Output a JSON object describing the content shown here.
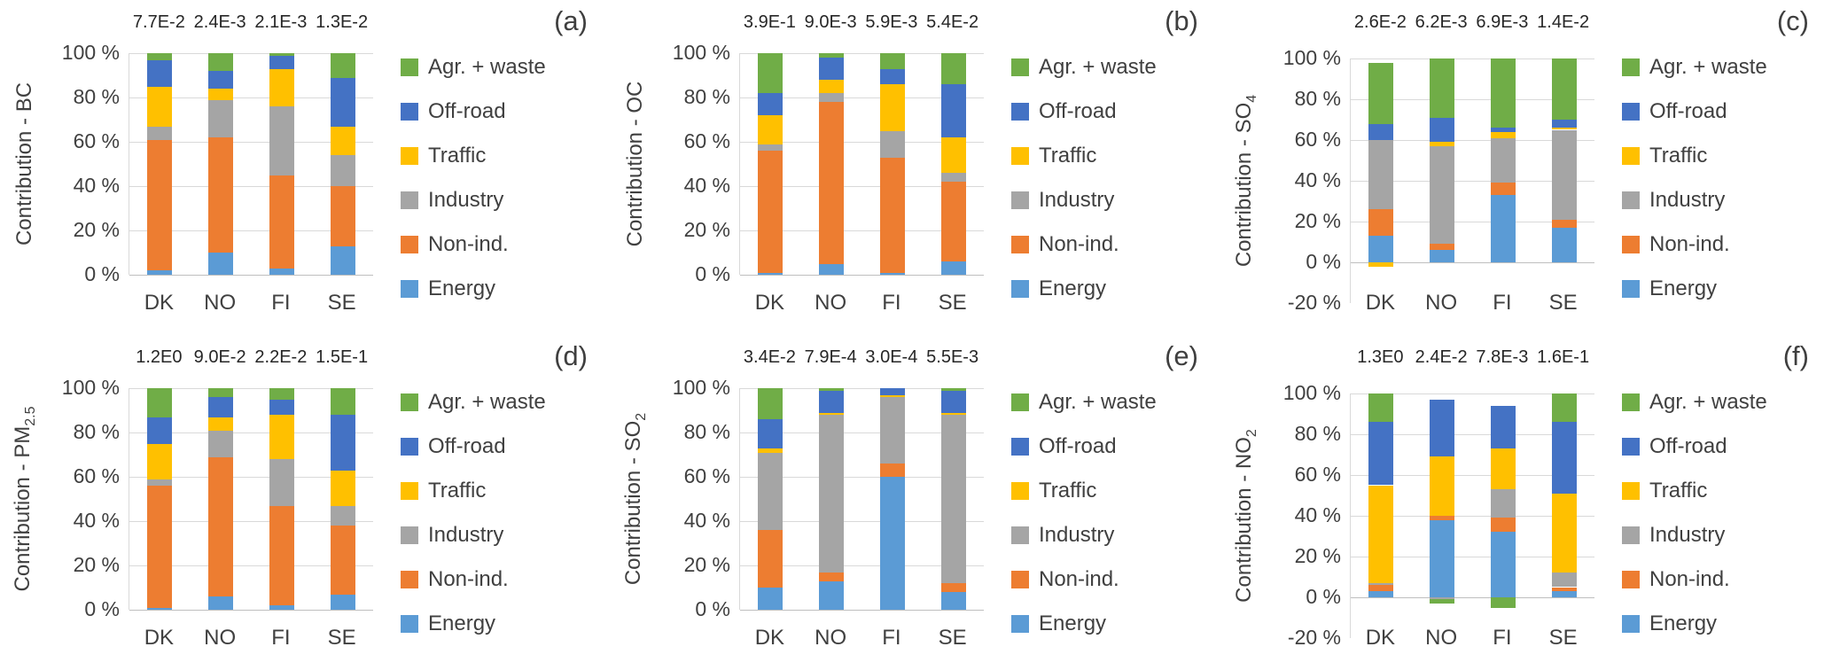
{
  "figure": {
    "background": "#ffffff",
    "text_color": "#404040",
    "gridline_color": "#d9d9d9",
    "axis_line_color": "#bfbfbf"
  },
  "countries": [
    "DK",
    "NO",
    "FI",
    "SE"
  ],
  "legend_labels_top_to_bottom": [
    "Agr. + waste",
    "Off-road",
    "Traffic",
    "Industry",
    "Non-ind.",
    "Energy"
  ],
  "sector_colors": {
    "Energy": "#5b9bd5",
    "Non-ind.": "#ed7d31",
    "Industry": "#a5a5a5",
    "Traffic": "#ffc000",
    "Off-road": "#4472c4",
    "Agr. + waste": "#70ad47"
  },
  "chart_data": [
    {
      "id": "a",
      "letter": "(a)",
      "type": "bar",
      "stacked": true,
      "ylabel": "Contribution - BC",
      "ylabel_sub": "",
      "categories": [
        "DK",
        "NO",
        "FI",
        "SE"
      ],
      "bar_total_labels": [
        "7.7E-2",
        "2.4E-3",
        "2.1E-3",
        "1.3E-2"
      ],
      "ylim": [
        0,
        100
      ],
      "yticks": [
        {
          "label": "100 %",
          "value": 100
        },
        {
          "label": "80 %",
          "value": 80
        },
        {
          "label": "60 %",
          "value": 60
        },
        {
          "label": "40 %",
          "value": 40
        },
        {
          "label": "20 %",
          "value": 20
        },
        {
          "label": "0 %",
          "value": 0
        }
      ],
      "series": [
        {
          "name": "Energy",
          "values": [
            2,
            10,
            3,
            13
          ]
        },
        {
          "name": "Non-ind.",
          "values": [
            59,
            52,
            42,
            27
          ]
        },
        {
          "name": "Industry",
          "values": [
            6,
            17,
            31,
            14
          ]
        },
        {
          "name": "Traffic",
          "values": [
            18,
            5,
            17,
            13
          ]
        },
        {
          "name": "Off-road",
          "values": [
            12,
            8,
            6,
            22
          ]
        },
        {
          "name": "Agr. + waste",
          "values": [
            3,
            8,
            1,
            11
          ]
        }
      ]
    },
    {
      "id": "b",
      "letter": "(b)",
      "type": "bar",
      "stacked": true,
      "ylabel": "Contribution - OC",
      "ylabel_sub": "",
      "categories": [
        "DK",
        "NO",
        "FI",
        "SE"
      ],
      "bar_total_labels": [
        "3.9E-1",
        "9.0E-3",
        "5.9E-3",
        "5.4E-2"
      ],
      "ylim": [
        0,
        100
      ],
      "yticks": [
        {
          "label": "100 %",
          "value": 100
        },
        {
          "label": "80 %",
          "value": 80
        },
        {
          "label": "60 %",
          "value": 60
        },
        {
          "label": "40 %",
          "value": 40
        },
        {
          "label": "20 %",
          "value": 20
        },
        {
          "label": "0 %",
          "value": 0
        }
      ],
      "series": [
        {
          "name": "Energy",
          "values": [
            1,
            5,
            1,
            6
          ]
        },
        {
          "name": "Non-ind.",
          "values": [
            55,
            73,
            52,
            36
          ]
        },
        {
          "name": "Industry",
          "values": [
            3,
            4,
            12,
            4
          ]
        },
        {
          "name": "Traffic",
          "values": [
            13,
            6,
            21,
            16
          ]
        },
        {
          "name": "Off-road",
          "values": [
            10,
            10,
            7,
            24
          ]
        },
        {
          "name": "Agr. + waste",
          "values": [
            18,
            2,
            7,
            14
          ]
        }
      ]
    },
    {
      "id": "c",
      "letter": "(c)",
      "type": "bar",
      "stacked": true,
      "ylabel": "Contribution - SO",
      "ylabel_sub": "4",
      "categories": [
        "DK",
        "NO",
        "FI",
        "SE"
      ],
      "bar_total_labels": [
        "2.6E-2",
        "6.2E-3",
        "6.9E-3",
        "1.4E-2"
      ],
      "ylim": [
        -20,
        100
      ],
      "yticks": [
        {
          "label": "100 %",
          "value": 100
        },
        {
          "label": "80 %",
          "value": 80
        },
        {
          "label": "60 %",
          "value": 60
        },
        {
          "label": "40 %",
          "value": 40
        },
        {
          "label": "20 %",
          "value": 20
        },
        {
          "label": "0 %",
          "value": 0
        },
        {
          "label": "-20 %",
          "value": -20
        }
      ],
      "series": [
        {
          "name": "Energy",
          "values": [
            13,
            6,
            33,
            17
          ]
        },
        {
          "name": "Non-ind.",
          "values": [
            13,
            3,
            6,
            4
          ]
        },
        {
          "name": "Industry",
          "values": [
            34,
            48,
            22,
            44
          ]
        },
        {
          "name": "Traffic",
          "values": [
            -2,
            2,
            3,
            1
          ]
        },
        {
          "name": "Off-road",
          "values": [
            8,
            12,
            2,
            4
          ]
        },
        {
          "name": "Agr. + waste",
          "values": [
            30,
            29,
            34,
            30
          ]
        }
      ]
    },
    {
      "id": "d",
      "letter": "(d)",
      "type": "bar",
      "stacked": true,
      "ylabel": "Contribution - PM",
      "ylabel_sub": "2.5",
      "categories": [
        "DK",
        "NO",
        "FI",
        "SE"
      ],
      "bar_total_labels": [
        "1.2E0",
        "9.0E-2",
        "2.2E-2",
        "1.5E-1"
      ],
      "ylim": [
        0,
        100
      ],
      "yticks": [
        {
          "label": "100 %",
          "value": 100
        },
        {
          "label": "80 %",
          "value": 80
        },
        {
          "label": "60 %",
          "value": 60
        },
        {
          "label": "40 %",
          "value": 40
        },
        {
          "label": "20 %",
          "value": 20
        },
        {
          "label": "0 %",
          "value": 0
        }
      ],
      "series": [
        {
          "name": "Energy",
          "values": [
            1,
            6,
            2,
            7
          ]
        },
        {
          "name": "Non-ind.",
          "values": [
            55,
            63,
            45,
            31
          ]
        },
        {
          "name": "Industry",
          "values": [
            3,
            12,
            21,
            9
          ]
        },
        {
          "name": "Traffic",
          "values": [
            16,
            6,
            20,
            16
          ]
        },
        {
          "name": "Off-road",
          "values": [
            12,
            9,
            7,
            25
          ]
        },
        {
          "name": "Agr. + waste",
          "values": [
            13,
            4,
            5,
            12
          ]
        }
      ]
    },
    {
      "id": "e",
      "letter": "(e)",
      "type": "bar",
      "stacked": true,
      "ylabel": "Contribution - SO",
      "ylabel_sub": "2",
      "categories": [
        "DK",
        "NO",
        "FI",
        "SE"
      ],
      "bar_total_labels": [
        "3.4E-2",
        "7.9E-4",
        "3.0E-4",
        "5.5E-3"
      ],
      "ylim": [
        0,
        100
      ],
      "yticks": [
        {
          "label": "100 %",
          "value": 100
        },
        {
          "label": "80 %",
          "value": 80
        },
        {
          "label": "60 %",
          "value": 60
        },
        {
          "label": "40 %",
          "value": 40
        },
        {
          "label": "20 %",
          "value": 20
        },
        {
          "label": "0 %",
          "value": 0
        }
      ],
      "series": [
        {
          "name": "Energy",
          "values": [
            10,
            13,
            60,
            8
          ]
        },
        {
          "name": "Non-ind.",
          "values": [
            26,
            4,
            6,
            4
          ]
        },
        {
          "name": "Industry",
          "values": [
            35,
            71,
            30,
            76
          ]
        },
        {
          "name": "Traffic",
          "values": [
            2,
            1,
            1,
            1
          ]
        },
        {
          "name": "Off-road",
          "values": [
            13,
            10,
            3,
            10
          ]
        },
        {
          "name": "Agr. + waste",
          "values": [
            14,
            1,
            0,
            1
          ]
        }
      ]
    },
    {
      "id": "f",
      "letter": "(f)",
      "type": "bar",
      "stacked": true,
      "ylabel": "Contribution - NO",
      "ylabel_sub": "2",
      "categories": [
        "DK",
        "NO",
        "FI",
        "SE"
      ],
      "bar_total_labels": [
        "1.3E0",
        "2.4E-2",
        "7.8E-3",
        "1.6E-1"
      ],
      "ylim": [
        -20,
        100
      ],
      "yticks": [
        {
          "label": "100 %",
          "value": 100
        },
        {
          "label": "80 %",
          "value": 80
        },
        {
          "label": "60 %",
          "value": 60
        },
        {
          "label": "40 %",
          "value": 40
        },
        {
          "label": "20 %",
          "value": 20
        },
        {
          "label": "0 %",
          "value": 0
        },
        {
          "label": "-20 %",
          "value": -20
        }
      ],
      "series": [
        {
          "name": "Energy",
          "values": [
            3,
            38,
            32,
            3
          ]
        },
        {
          "name": "Non-ind.",
          "values": [
            3,
            2,
            7,
            2
          ]
        },
        {
          "name": "Industry",
          "values": [
            1,
            -1,
            14,
            7
          ]
        },
        {
          "name": "Traffic",
          "values": [
            48,
            29,
            20,
            39
          ]
        },
        {
          "name": "Off-road",
          "values": [
            31,
            28,
            21,
            35
          ]
        },
        {
          "name": "Agr. + waste",
          "values": [
            14,
            -2,
            -5,
            14
          ]
        }
      ]
    }
  ]
}
